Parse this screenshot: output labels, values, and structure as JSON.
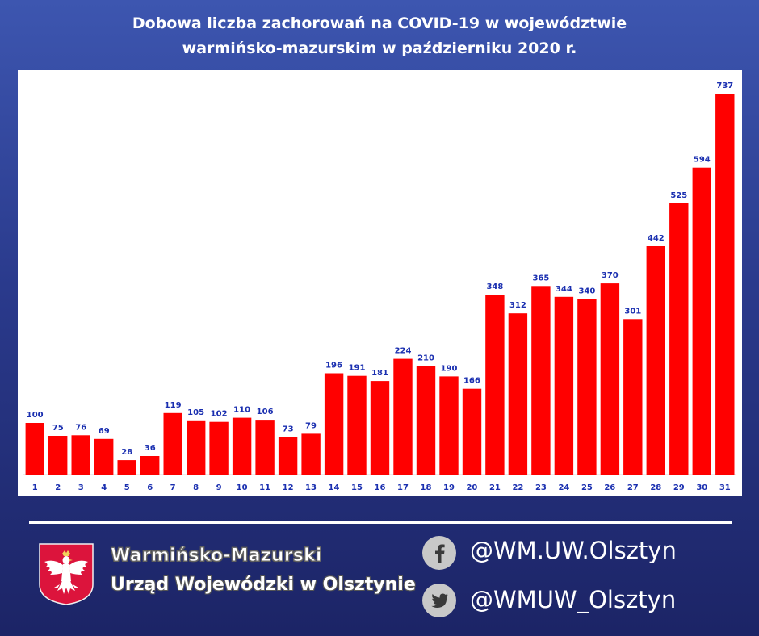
{
  "header": {
    "title_line1": "Dobowa liczba zachorowań na COVID-19 w województwie",
    "title_line2": "warmińsko-mazurskim w październiku 2020 r."
  },
  "chart_data": {
    "type": "bar",
    "categories": [
      "1",
      "2",
      "3",
      "4",
      "5",
      "6",
      "7",
      "8",
      "9",
      "10",
      "11",
      "12",
      "13",
      "14",
      "15",
      "16",
      "17",
      "18",
      "19",
      "20",
      "21",
      "22",
      "23",
      "24",
      "25",
      "26",
      "27",
      "28",
      "29",
      "30",
      "31"
    ],
    "values": [
      100,
      75,
      76,
      69,
      28,
      36,
      119,
      105,
      102,
      110,
      106,
      73,
      79,
      196,
      191,
      181,
      224,
      210,
      190,
      166,
      348,
      312,
      365,
      344,
      340,
      370,
      301,
      442,
      525,
      594,
      737
    ],
    "title": "Dobowa liczba zachorowań na COVID-19 w województwie warmińsko-mazurskim w październiku 2020 r.",
    "xlabel": "",
    "ylabel": "",
    "ylim": [
      0,
      770
    ],
    "grid": false,
    "legend": "none",
    "bar_color": "#ff0000",
    "label_color": "#1a2fb0"
  },
  "footer": {
    "org_line1": "Warmińsko-Mazurski",
    "org_line2": "Urząd Wojewódzki w Olsztynie",
    "facebook_handle": "@WM.UW.Olsztyn",
    "twitter_handle": "@WMUW_Olsztyn",
    "icons": [
      "facebook-icon",
      "twitter-icon",
      "polish-eagle-emblem"
    ]
  },
  "colors": {
    "background_top": "#3d56b0",
    "background_bottom": "#1c2466",
    "emblem_red": "#dc143c"
  }
}
